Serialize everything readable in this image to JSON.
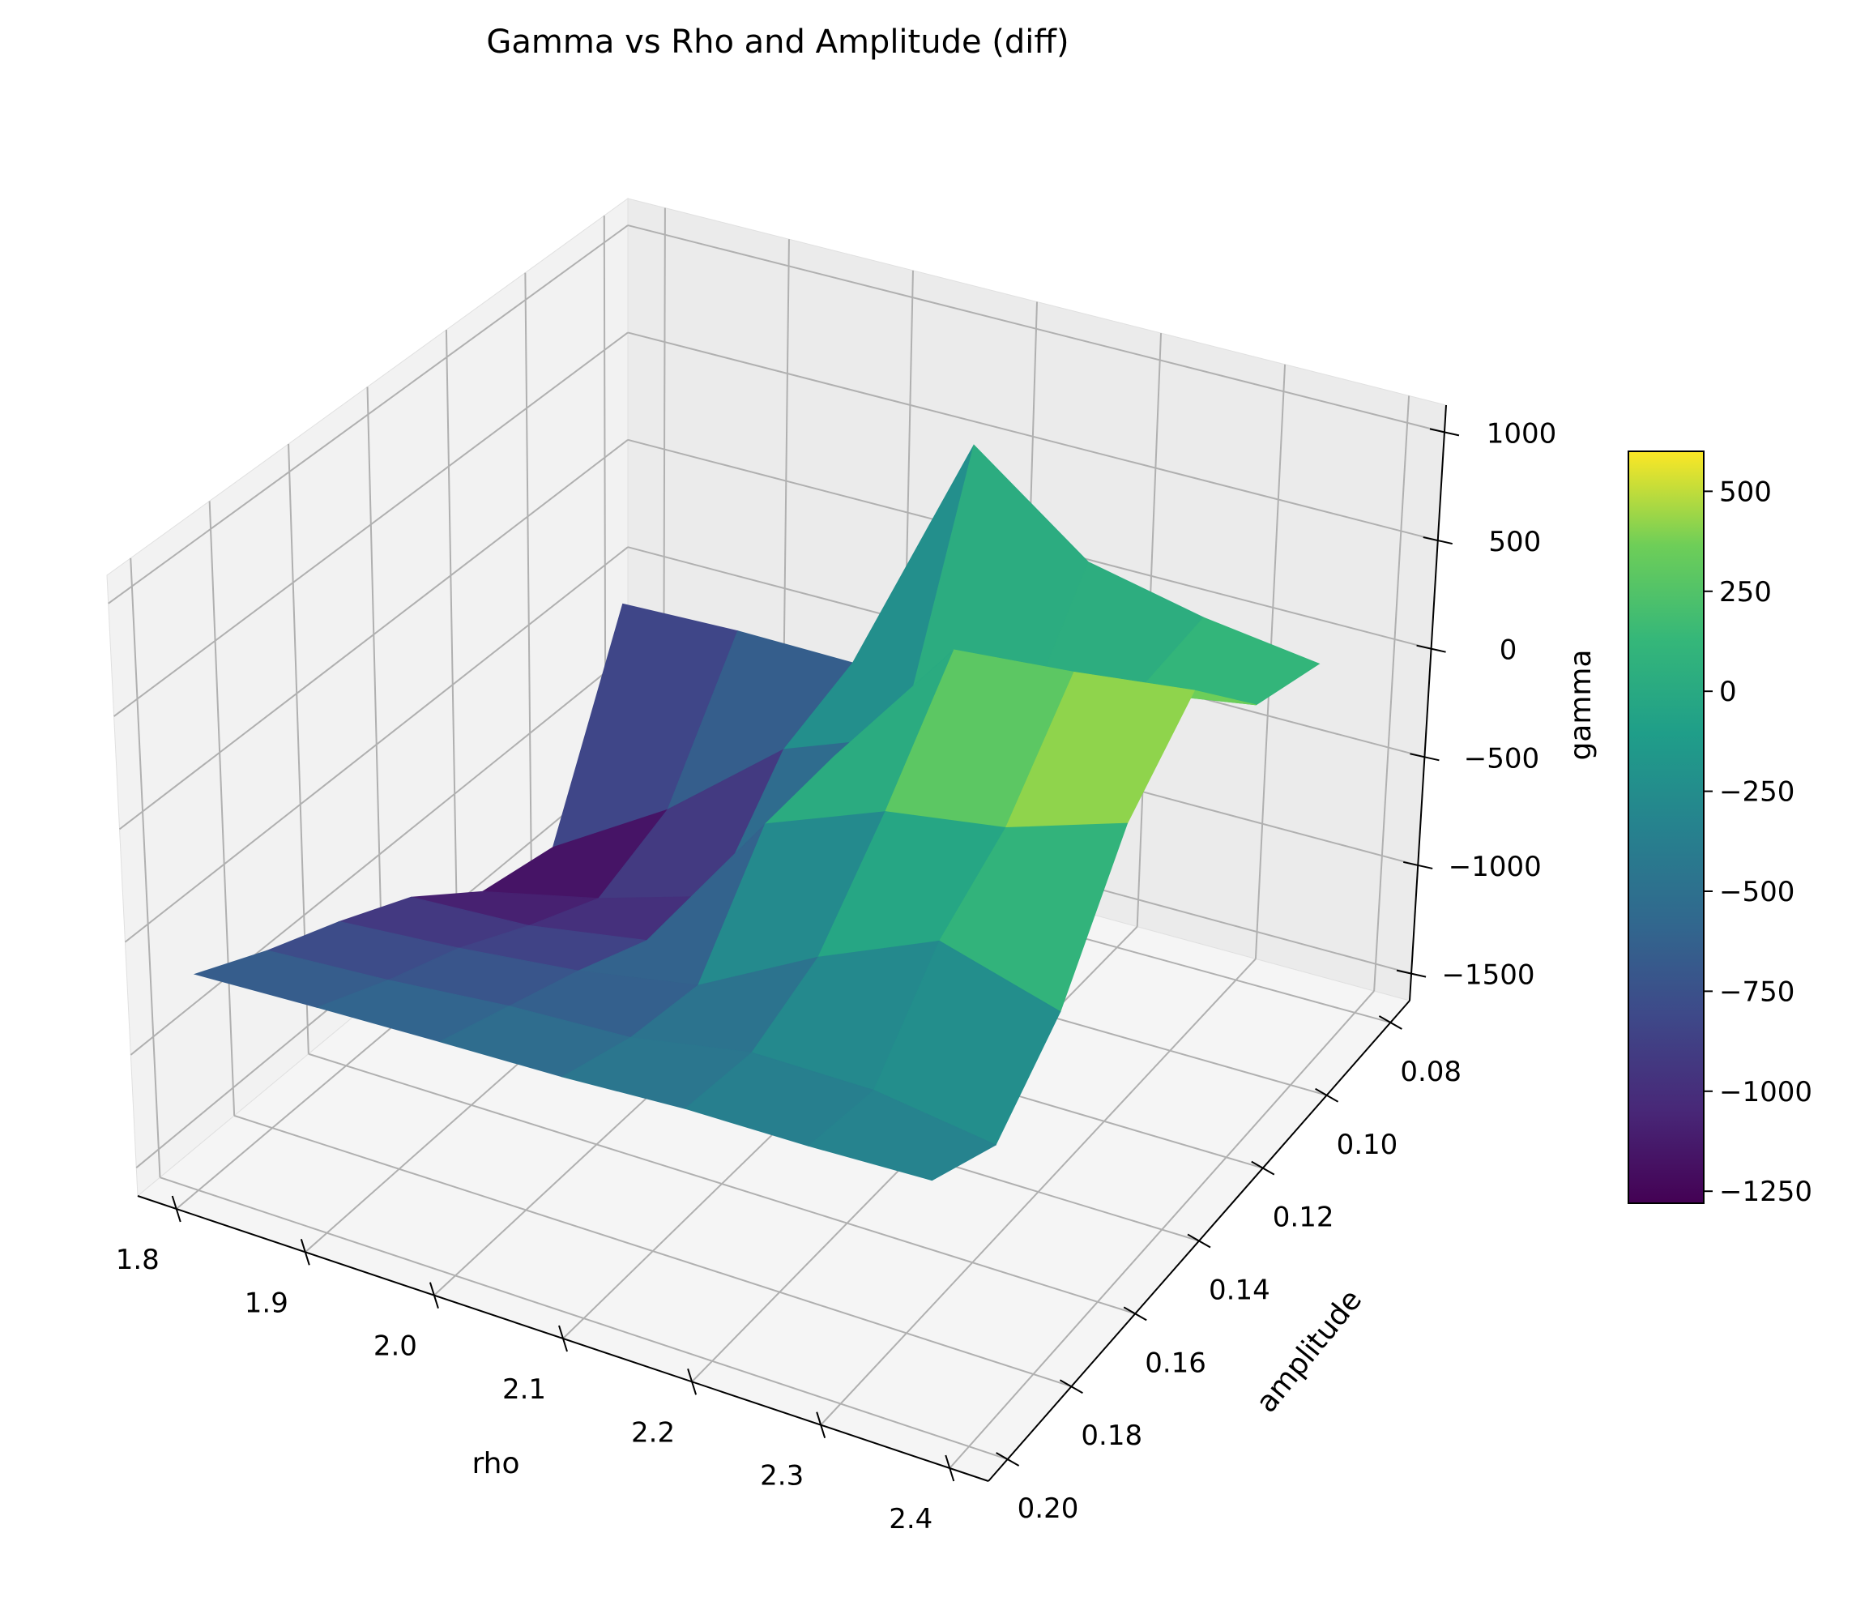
{
  "chart_data": {
    "type": "surface3d",
    "title": "Gamma vs Rho and Amplitude (diff)",
    "xlabel": "rho",
    "ylabel": "amplitude",
    "zlabel": "gamma",
    "colormap": "viridis",
    "grid": true,
    "x_ticks": [
      "1.8",
      "1.9",
      "2.0",
      "2.1",
      "2.2",
      "2.3",
      "2.4"
    ],
    "y_ticks": [
      "0.08",
      "0.10",
      "0.12",
      "0.14",
      "0.16",
      "0.18",
      "0.20"
    ],
    "z_ticks": [
      "1000",
      "500",
      "0",
      "−500",
      "−1000",
      "−1500"
    ],
    "colorbar_ticks": [
      "500",
      "250",
      "0",
      "−250",
      "−500",
      "−750",
      "−1000",
      "−1250"
    ],
    "colorbar_range": [
      -1280,
      600
    ],
    "x": [
      1.8,
      1.9,
      2.0,
      2.1,
      2.2,
      2.3,
      2.4
    ],
    "y": [
      0.2,
      0.18,
      0.16,
      0.14,
      0.12,
      0.1,
      0.08
    ],
    "z": [
      [
        -620,
        -560,
        -500,
        -440,
        -360,
        -300,
        -220
      ],
      [
        -760,
        -700,
        -620,
        -560,
        -420,
        -380,
        -420
      ],
      [
        -880,
        -820,
        -740,
        -620,
        -300,
        -20,
        -140
      ],
      [
        -1020,
        -980,
        -880,
        -200,
        40,
        160,
        380
      ],
      [
        -1240,
        -1120,
        -960,
        -200,
        440,
        520,
        620
      ],
      [
        -1300,
        -1000,
        -600,
        -400,
        -240,
        100,
        200
      ],
      [
        -520,
        -500,
        -500,
        560,
        200,
        100,
        40
      ]
    ]
  }
}
